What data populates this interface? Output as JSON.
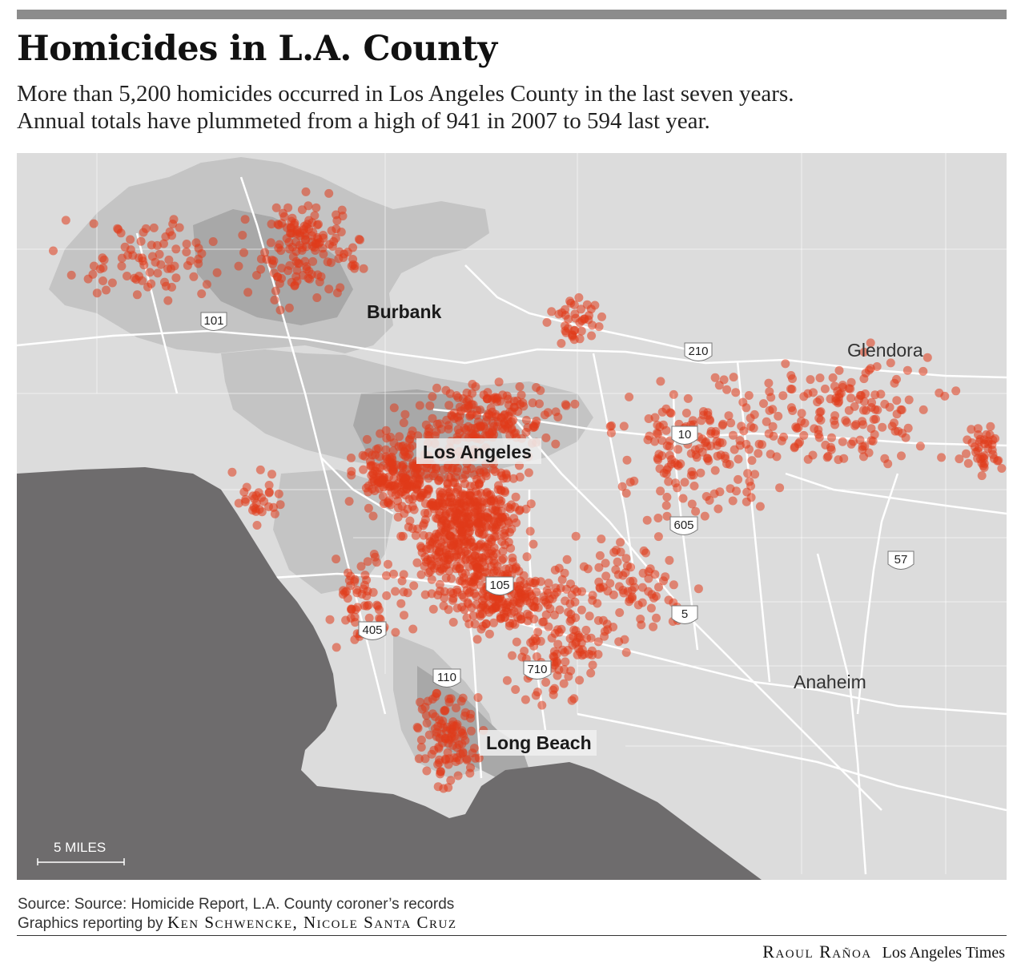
{
  "header": {
    "title": "Homicides in L.A. County",
    "subtitle_line1": "More than 5,200 homicides occurred in Los Angeles County in the last seven years.",
    "subtitle_line2": "Annual totals have plummeted from a high of 941 in 2007 to 594 last year."
  },
  "map": {
    "city_labels": [
      "Burbank",
      "Los Angeles",
      "Long Beach",
      "Glendora",
      "Anaheim"
    ],
    "highway_shields": [
      "101",
      "210",
      "10",
      "605",
      "57",
      "105",
      "5",
      "405",
      "110",
      "710"
    ],
    "scale_label": "5 MILES",
    "colors": {
      "ocean": "#6e6c6d",
      "land": "#dcdcdc",
      "city_area": "#c4c4c4",
      "city_dark": "#a8a8a8",
      "roads": "#ffffff",
      "homicide_dot": "#e03a1a"
    }
  },
  "footer": {
    "source": "Source: Source: Homicide Report, L.A. County coroner’s records",
    "reporting_prefix": "Graphics reporting by",
    "reporters": "Ken Schwencke, Nicole Santa Cruz",
    "artist": "Raoul Rañoa",
    "publication": "Los Angeles Times"
  }
}
